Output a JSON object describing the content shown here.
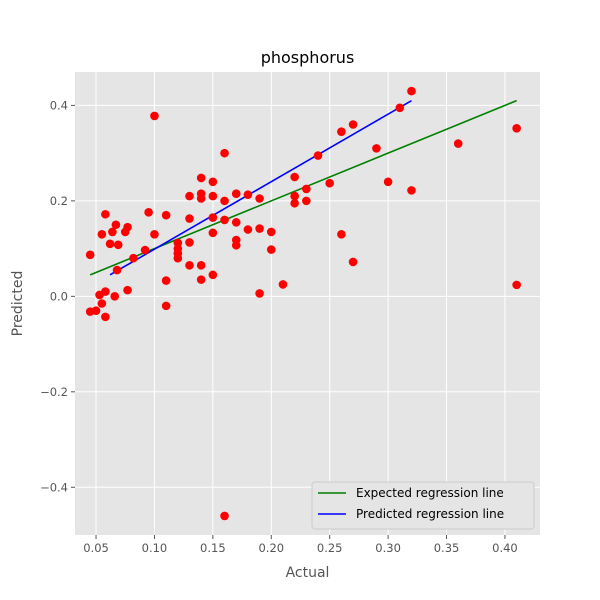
{
  "chart_data": {
    "type": "scatter",
    "title": "phosphorus",
    "xlabel": "Actual",
    "ylabel": "Predicted",
    "xlim": [
      0.032,
      0.43
    ],
    "ylim": [
      -0.5,
      0.47
    ],
    "xticks": [
      0.05,
      0.1,
      0.15,
      0.2,
      0.25,
      0.3,
      0.35,
      0.4
    ],
    "xtick_labels": [
      "0.05",
      "0.10",
      "0.15",
      "0.20",
      "0.25",
      "0.30",
      "0.35",
      "0.40"
    ],
    "yticks": [
      -0.4,
      -0.2,
      0.0,
      0.2,
      0.4
    ],
    "ytick_labels": [
      "−0.4",
      "−0.2",
      "0.0",
      "0.2",
      "0.4"
    ],
    "grid": true,
    "legend_position": "lower-right",
    "colors": {
      "points": "#ff0000",
      "expected_line": "#008000",
      "predicted_line": "#0000ff",
      "plot_background": "#e5e5e5"
    },
    "points": [
      [
        0.045,
        0.087
      ],
      [
        0.045,
        -0.032
      ],
      [
        0.05,
        -0.03
      ],
      [
        0.053,
        0.003
      ],
      [
        0.055,
        0.13
      ],
      [
        0.055,
        -0.015
      ],
      [
        0.058,
        0.172
      ],
      [
        0.058,
        0.01
      ],
      [
        0.058,
        -0.043
      ],
      [
        0.062,
        0.11
      ],
      [
        0.064,
        0.135
      ],
      [
        0.066,
        0.0
      ],
      [
        0.067,
        0.15
      ],
      [
        0.068,
        0.055
      ],
      [
        0.069,
        0.108
      ],
      [
        0.075,
        0.135
      ],
      [
        0.077,
        0.145
      ],
      [
        0.077,
        0.013
      ],
      [
        0.082,
        0.08
      ],
      [
        0.092,
        0.097
      ],
      [
        0.095,
        0.176
      ],
      [
        0.1,
        0.13
      ],
      [
        0.1,
        0.378
      ],
      [
        0.11,
        0.17
      ],
      [
        0.11,
        0.033
      ],
      [
        0.11,
        -0.02
      ],
      [
        0.12,
        0.112
      ],
      [
        0.12,
        0.1
      ],
      [
        0.12,
        0.09
      ],
      [
        0.12,
        0.08
      ],
      [
        0.13,
        0.21
      ],
      [
        0.13,
        0.163
      ],
      [
        0.13,
        0.113
      ],
      [
        0.13,
        0.065
      ],
      [
        0.14,
        0.248
      ],
      [
        0.14,
        0.215
      ],
      [
        0.14,
        0.205
      ],
      [
        0.14,
        0.065
      ],
      [
        0.14,
        0.035
      ],
      [
        0.15,
        0.24
      ],
      [
        0.15,
        0.21
      ],
      [
        0.15,
        0.165
      ],
      [
        0.15,
        0.133
      ],
      [
        0.15,
        0.045
      ],
      [
        0.16,
        0.3
      ],
      [
        0.16,
        0.2
      ],
      [
        0.16,
        0.16
      ],
      [
        0.16,
        -0.46
      ],
      [
        0.17,
        0.215
      ],
      [
        0.17,
        0.155
      ],
      [
        0.17,
        0.118
      ],
      [
        0.17,
        0.107
      ],
      [
        0.18,
        0.213
      ],
      [
        0.18,
        0.14
      ],
      [
        0.19,
        0.205
      ],
      [
        0.19,
        0.142
      ],
      [
        0.19,
        0.006
      ],
      [
        0.2,
        0.135
      ],
      [
        0.2,
        0.098
      ],
      [
        0.21,
        0.025
      ],
      [
        0.22,
        0.25
      ],
      [
        0.22,
        0.21
      ],
      [
        0.22,
        0.195
      ],
      [
        0.23,
        0.225
      ],
      [
        0.23,
        0.2
      ],
      [
        0.24,
        0.295
      ],
      [
        0.25,
        0.237
      ],
      [
        0.26,
        0.345
      ],
      [
        0.26,
        0.13
      ],
      [
        0.27,
        0.36
      ],
      [
        0.27,
        0.072
      ],
      [
        0.29,
        0.31
      ],
      [
        0.3,
        0.24
      ],
      [
        0.31,
        0.395
      ],
      [
        0.32,
        0.43
      ],
      [
        0.32,
        0.222
      ],
      [
        0.36,
        0.32
      ],
      [
        0.41,
        0.352
      ],
      [
        0.41,
        0.024
      ]
    ],
    "series": [
      {
        "name": "Expected regression line",
        "x": [
          0.045,
          0.41
        ],
        "y": [
          0.045,
          0.41
        ]
      },
      {
        "name": "Predicted regression line",
        "x": [
          0.062,
          0.32
        ],
        "y": [
          0.045,
          0.41
        ]
      }
    ]
  }
}
